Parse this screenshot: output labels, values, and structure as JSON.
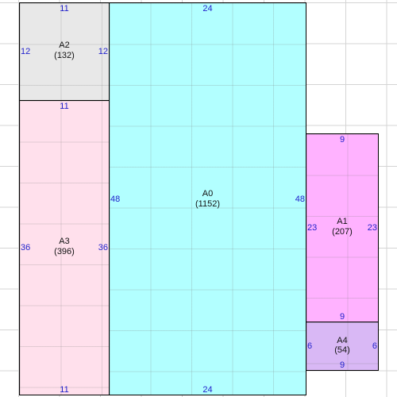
{
  "areas": {
    "a0": {
      "name": "A0",
      "size": "(1152)",
      "dims": {
        "top": "24",
        "bottom": "24",
        "left": "48",
        "right": "48"
      },
      "color": "#b2ffff"
    },
    "a1": {
      "name": "A1",
      "size": "(207)",
      "dims": {
        "top": "9",
        "bottom": "9",
        "left": "23",
        "right": "23"
      },
      "color": "#ffb2ff"
    },
    "a2": {
      "name": "A2",
      "size": "(132)",
      "dims": {
        "top": "11",
        "bottom": "",
        "left": "12",
        "right": "12"
      },
      "color": "#e8e8e8"
    },
    "a3": {
      "name": "A3",
      "size": "(396)",
      "dims": {
        "top": "11",
        "bottom": "11",
        "left": "36",
        "right": "36"
      },
      "color": "#ffe0ec"
    },
    "a4": {
      "name": "A4",
      "size": "(54)",
      "dims": {
        "top": "",
        "bottom": "9",
        "left": "6",
        "right": "6"
      },
      "color": "#d9b8f5"
    }
  },
  "colors": {
    "grid": "#d4d4d4",
    "border": "#000000",
    "dimension_text": "#2222cc"
  }
}
